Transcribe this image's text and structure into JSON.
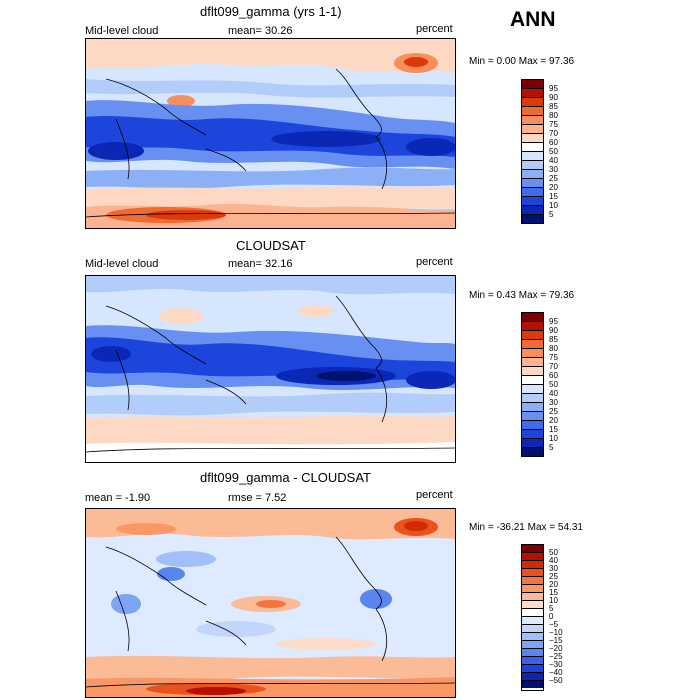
{
  "header": {
    "season": "ANN"
  },
  "panels": [
    {
      "title": "dflt099_gamma (yrs 1-1)",
      "left_label": "Mid-level cloud",
      "mid_label": "mean=  30.26",
      "units": "percent",
      "minmax": "Min =   0.00 Max =  97.36",
      "colorbar": {
        "labels": [
          "95",
          "90",
          "85",
          "80",
          "75",
          "70",
          "60",
          "50",
          "40",
          "30",
          "25",
          "20",
          "15",
          "10",
          "5"
        ],
        "colors": [
          "#7a0000",
          "#b40f00",
          "#dc3a0a",
          "#f06a34",
          "#f88e5e",
          "#fbb392",
          "#fdd9c4",
          "#ffffff",
          "#d6e6ff",
          "#b3cdfb",
          "#8cb0f6",
          "#6790f2",
          "#3e6cec",
          "#1d45dc",
          "#0a27b6",
          "#00126f"
        ]
      }
    },
    {
      "title": "CLOUDSAT",
      "left_label": "Mid-level cloud",
      "mid_label": "mean=  32.16",
      "units": "percent",
      "minmax": "Min =   0.43 Max =  79.36",
      "colorbar": {
        "labels": [
          "95",
          "90",
          "85",
          "80",
          "75",
          "70",
          "60",
          "50",
          "40",
          "30",
          "25",
          "20",
          "15",
          "10",
          "5"
        ],
        "colors": [
          "#7a0000",
          "#b40f00",
          "#dc3a0a",
          "#f06a34",
          "#f88e5e",
          "#fbb392",
          "#fdd9c4",
          "#ffffff",
          "#d6e6ff",
          "#b3cdfb",
          "#8cb0f6",
          "#6790f2",
          "#3e6cec",
          "#1d45dc",
          "#0a27b6",
          "#00126f"
        ]
      }
    },
    {
      "title": "dflt099_gamma - CLOUDSAT",
      "left_label": "mean =  -1.90",
      "mid_label": "rmse =   7.52",
      "units": "percent",
      "minmax": "Min = -36.21 Max =  54.31",
      "colorbar": {
        "labels": [
          "50",
          "40",
          "30",
          "25",
          "20",
          "15",
          "10",
          "5",
          "0",
          "−5",
          "−10",
          "−15",
          "−20",
          "−25",
          "−30",
          "−40",
          "−50"
        ],
        "colors": [
          "#7a0000",
          "#b40f00",
          "#d22a04",
          "#e9521f",
          "#f57541",
          "#f99866",
          "#fbbb97",
          "#fdddc9",
          "#ffffff",
          "#deeaff",
          "#c2d6fc",
          "#a1bff8",
          "#7ea4f4",
          "#5a85ef",
          "#3862e9",
          "#1d43d8",
          "#0a26b0",
          "#00126f"
        ]
      }
    }
  ]
}
